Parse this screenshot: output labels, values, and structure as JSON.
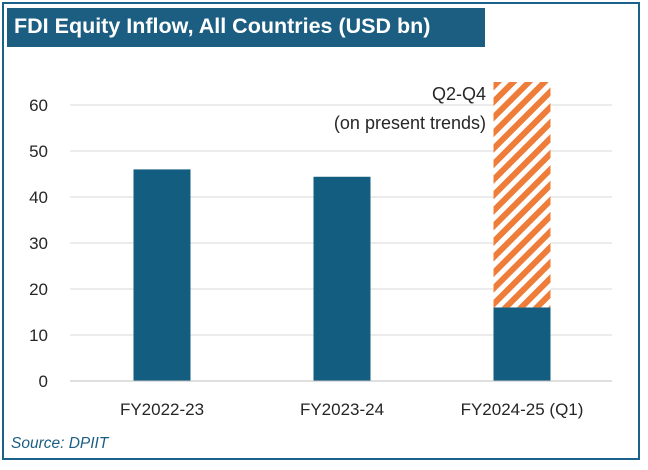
{
  "title": "FDI Equity Inflow, All Countries (USD bn)",
  "source": "Source: DPIIT",
  "colors": {
    "title_bg": "#1b5e82",
    "frame": "#1b6189",
    "bar": "#135e80",
    "hatch": "#ef7d3a",
    "grid": "#d9d9d9",
    "source_text": "#1b5e82"
  },
  "chart_data": {
    "type": "bar",
    "title": "FDI Equity Inflow, All Countries (USD bn)",
    "categories": [
      "FY2022-23",
      "FY2023-24",
      "FY2024-25 (Q1)"
    ],
    "series": [
      {
        "name": "",
        "values": [
          46,
          44.4,
          16
        ]
      },
      {
        "name": "Q2-Q4 (on present trends)",
        "values": [
          0,
          0,
          49
        ],
        "pattern": "hatched"
      }
    ],
    "stacked": true,
    "ylim": [
      0,
      65
    ],
    "yticks": [
      0,
      10,
      20,
      30,
      40,
      50,
      60
    ],
    "grid": true,
    "xlabel": "",
    "ylabel": "",
    "annotations": [
      "Q2-Q4",
      "(on present trends)"
    ]
  }
}
